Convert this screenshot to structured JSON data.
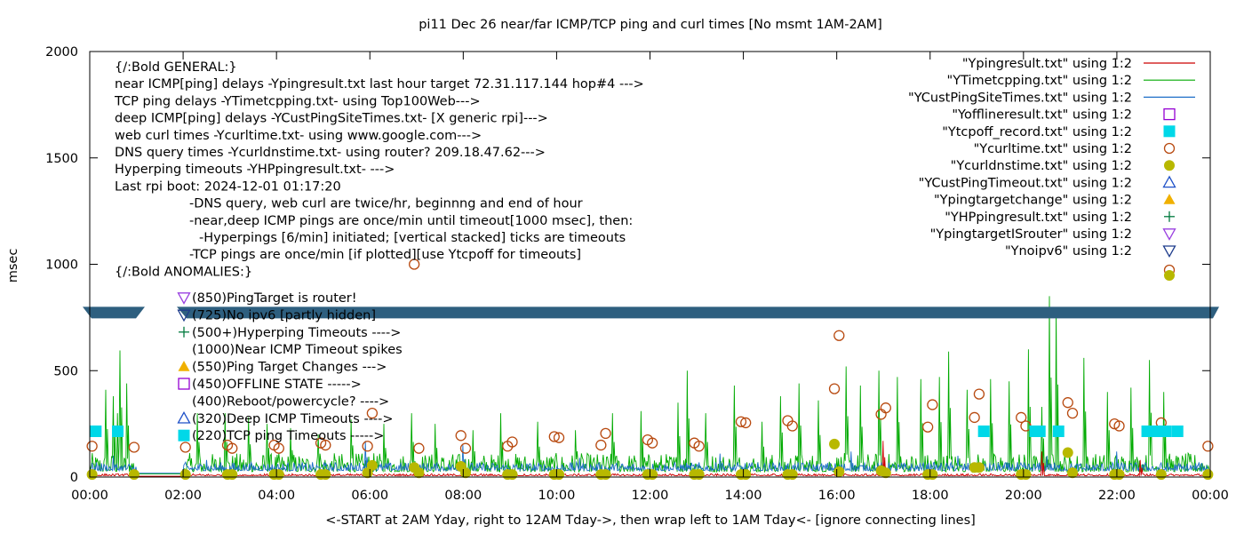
{
  "chart_data": {
    "type": "scatter",
    "title": "pi11 Dec 26  near/far ICMP/TCP ping and curl times [No msmt 1AM-2AM]",
    "xlabel": "<-START at 2AM Yday, right to 12AM Tday->, then wrap left to 1AM Tday<- [ignore connecting lines]",
    "ylabel": "msec",
    "xlim": [
      0,
      24
    ],
    "ylim": [
      0,
      2000
    ],
    "x_ticks": [
      "00:00",
      "02:00",
      "04:00",
      "06:00",
      "08:00",
      "10:00",
      "12:00",
      "14:00",
      "16:00",
      "18:00",
      "20:00",
      "22:00",
      "00:00"
    ],
    "y_ticks": [
      0,
      500,
      1000,
      1500,
      2000
    ],
    "legend_position": "top-right",
    "legend": [
      {
        "label": "\"Ypingresult.txt\" using 1:2",
        "marker": "line",
        "color": "#cc0000"
      },
      {
        "label": "\"YTimetcpping.txt\" using 1:2",
        "marker": "line",
        "color": "#00aa00"
      },
      {
        "label": "\"YCustPingSiteTimes.txt\" using 1:2",
        "marker": "line",
        "color": "#1e6fc8"
      },
      {
        "label": "\"Yofflineresult.txt\" using 1:2",
        "marker": "open-square",
        "color": "#9400d3"
      },
      {
        "label": "\"Ytcpoff_record.txt\" using 1:2",
        "marker": "filled-square",
        "color": "#00d8e8"
      },
      {
        "label": "\"Ycurltime.txt\" using 1:2",
        "marker": "open-circle",
        "color": "#b84a10"
      },
      {
        "label": "\"Ycurldnstime.txt\" using 1:2",
        "marker": "filled-circle",
        "color": "#b8b800"
      },
      {
        "label": "\"YCustPingTimeout.txt\" using 1:2",
        "marker": "open-triangle",
        "color": "#1e50c8"
      },
      {
        "label": "\"Ypingtargetchange\" using 1:2",
        "marker": "filled-triangle",
        "color": "#f0b000"
      },
      {
        "label": "\"YHPpingresult.txt\" using 1:2",
        "marker": "plus",
        "color": "#007a3d"
      },
      {
        "label": "\"YpingtargetISrouter\" using 1:2",
        "marker": "open-down-triangle",
        "color": "#9a40e0"
      },
      {
        "label": "\"Ynoipv6\" using 1:2",
        "marker": "open-down-triangle",
        "color": "#1e3c8c"
      }
    ],
    "info_text": [
      "{/:Bold GENERAL:}",
      "near ICMP[ping] delays -Ypingresult.txt last hour target 72.31.117.144 hop#4 --->",
      "TCP ping delays -YTimetcpping.txt- using Top100Web--->",
      "deep ICMP[ping] delays -YCustPingSiteTimes.txt- [X generic rpi]--->",
      "web curl times -Ycurltime.txt- using www.google.com--->",
      "DNS query times -Ycurldnstime.txt- using router? 209.18.47.62--->",
      "Hyperping timeouts -YHPpingresult.txt- --->",
      "Last rpi boot: 2024-12-01 01:17:20",
      "-DNS query, web curl are twice/hr, beginnng and end of hour",
      "-near,deep ICMP pings are once/min until timeout[1000 msec], then:",
      "-Hyperpings [6/min] initiated; [vertical stacked] ticks are timeouts",
      "-TCP pings are once/min [if plotted][use Ytcpoff for timeouts]",
      "{/:Bold ANOMALIES:}"
    ],
    "anomaly_labels": [
      {
        "text": "(850)PingTarget is router!",
        "marker": "open-down-triangle",
        "color": "#9a40e0"
      },
      {
        "text": "(725)No ipv6 [partly hidden]",
        "marker": "open-down-triangle",
        "color": "#1e3c8c"
      },
      {
        "text": "(500+)Hyperping Timeouts ---->",
        "marker": "plus",
        "color": "#007a3d"
      },
      {
        "text": "(1000)Near ICMP Timeout spikes",
        "marker": "none",
        "color": "#000000"
      },
      {
        "text": "(550)Ping Target Changes --->",
        "marker": "filled-triangle",
        "color": "#f0b000"
      },
      {
        "text": "(450)OFFLINE STATE ----->",
        "marker": "open-square",
        "color": "#9400d3"
      },
      {
        "text": "(400)Reboot/powercycle? ---->",
        "marker": "none",
        "color": "#000000"
      },
      {
        "text": "(320)Deep ICMP Timeouts ---->",
        "marker": "open-triangle",
        "color": "#1e50c8"
      },
      {
        "text": "(220)TCP ping Timeouts ----->",
        "marker": "filled-square",
        "color": "#00d8e8"
      }
    ],
    "band": {
      "y": 775,
      "color": "#2e5f7f"
    },
    "series": [
      {
        "name": "\"Ycurltime.txt\" using 1:2",
        "marker": "open-circle",
        "color": "#b84a10",
        "points": [
          [
            0.05,
            145
          ],
          [
            0.95,
            140
          ],
          [
            2.05,
            140
          ],
          [
            2.95,
            150
          ],
          [
            3.05,
            135
          ],
          [
            3.95,
            150
          ],
          [
            4.05,
            135
          ],
          [
            4.95,
            160
          ],
          [
            5.05,
            150
          ],
          [
            5.95,
            145
          ],
          [
            6.05,
            300
          ],
          [
            6.95,
            1000
          ],
          [
            7.05,
            135
          ],
          [
            7.95,
            195
          ],
          [
            8.05,
            135
          ],
          [
            8.95,
            145
          ],
          [
            9.05,
            165
          ],
          [
            9.95,
            190
          ],
          [
            10.05,
            185
          ],
          [
            10.95,
            150
          ],
          [
            11.05,
            205
          ],
          [
            11.95,
            175
          ],
          [
            12.05,
            160
          ],
          [
            12.95,
            160
          ],
          [
            13.05,
            145
          ],
          [
            13.95,
            260
          ],
          [
            14.05,
            255
          ],
          [
            14.95,
            265
          ],
          [
            15.05,
            240
          ],
          [
            15.95,
            415
          ],
          [
            16.05,
            665
          ],
          [
            16.95,
            295
          ],
          [
            17.05,
            325
          ],
          [
            17.95,
            235
          ],
          [
            18.05,
            340
          ],
          [
            18.95,
            280
          ],
          [
            19.05,
            390
          ],
          [
            19.95,
            280
          ],
          [
            20.05,
            240
          ],
          [
            20.95,
            350
          ],
          [
            21.05,
            300
          ],
          [
            21.95,
            250
          ],
          [
            22.05,
            240
          ],
          [
            22.95,
            255
          ],
          [
            23.95,
            145
          ]
        ]
      },
      {
        "name": "\"Ycurldnstime.txt\" using 1:2",
        "marker": "filled-circle",
        "color": "#b8b800",
        "points": [
          [
            0.05,
            12
          ],
          [
            0.95,
            12
          ],
          [
            2.05,
            12
          ],
          [
            2.95,
            12
          ],
          [
            3.05,
            12
          ],
          [
            3.95,
            12
          ],
          [
            4.05,
            12
          ],
          [
            4.95,
            12
          ],
          [
            5.05,
            12
          ],
          [
            5.95,
            20
          ],
          [
            6.05,
            55
          ],
          [
            6.95,
            45
          ],
          [
            7.05,
            20
          ],
          [
            7.95,
            50
          ],
          [
            8.05,
            20
          ],
          [
            8.95,
            12
          ],
          [
            9.05,
            12
          ],
          [
            9.95,
            12
          ],
          [
            10.05,
            12
          ],
          [
            10.95,
            12
          ],
          [
            11.05,
            12
          ],
          [
            11.95,
            12
          ],
          [
            12.05,
            12
          ],
          [
            12.95,
            12
          ],
          [
            13.05,
            12
          ],
          [
            13.95,
            12
          ],
          [
            14.05,
            12
          ],
          [
            14.95,
            12
          ],
          [
            15.05,
            12
          ],
          [
            15.95,
            155
          ],
          [
            16.05,
            25
          ],
          [
            16.95,
            30
          ],
          [
            17.05,
            20
          ],
          [
            17.95,
            12
          ],
          [
            18.05,
            12
          ],
          [
            18.95,
            45
          ],
          [
            19.05,
            45
          ],
          [
            19.95,
            12
          ],
          [
            20.05,
            12
          ],
          [
            20.95,
            115
          ],
          [
            21.05,
            20
          ],
          [
            21.95,
            12
          ],
          [
            22.05,
            12
          ],
          [
            22.95,
            12
          ],
          [
            23.95,
            12
          ]
        ]
      },
      {
        "name": "\"Ytcpoff_record.txt\" using 1:2",
        "marker": "filled-square",
        "color": "#00d8e8",
        "points": [
          [
            0.13,
            215
          ],
          [
            0.6,
            215
          ],
          [
            19.15,
            215
          ],
          [
            20.25,
            215
          ],
          [
            20.35,
            215
          ],
          [
            20.75,
            215
          ],
          [
            22.65,
            215
          ],
          [
            22.78,
            215
          ],
          [
            22.88,
            215
          ],
          [
            23.05,
            215
          ],
          [
            23.3,
            215
          ]
        ]
      }
    ],
    "line_series": [
      {
        "name": "\"YTimetcpping.txt\" using 1:2",
        "color": "#00aa00",
        "baseline": 25,
        "noise": 55,
        "spikes": [
          [
            0.35,
            410
          ],
          [
            0.5,
            380
          ],
          [
            0.6,
            300
          ],
          [
            0.65,
            595
          ],
          [
            0.8,
            440
          ],
          [
            2.3,
            300
          ],
          [
            2.9,
            300
          ],
          [
            3.4,
            280
          ],
          [
            3.8,
            250
          ],
          [
            4.3,
            230
          ],
          [
            4.9,
            200
          ],
          [
            5.6,
            270
          ],
          [
            6.3,
            250
          ],
          [
            6.9,
            300
          ],
          [
            7.4,
            250
          ],
          [
            8.2,
            220
          ],
          [
            8.8,
            300
          ],
          [
            9.6,
            260
          ],
          [
            10.4,
            220
          ],
          [
            11.2,
            300
          ],
          [
            11.8,
            310
          ],
          [
            12.6,
            350
          ],
          [
            12.8,
            500
          ],
          [
            13.2,
            300
          ],
          [
            13.8,
            430
          ],
          [
            14.4,
            260
          ],
          [
            14.8,
            380
          ],
          [
            15.2,
            440
          ],
          [
            15.6,
            360
          ],
          [
            16.2,
            520
          ],
          [
            16.5,
            430
          ],
          [
            16.9,
            500
          ],
          [
            17.3,
            470
          ],
          [
            17.8,
            460
          ],
          [
            18.2,
            470
          ],
          [
            18.4,
            590
          ],
          [
            18.8,
            410
          ],
          [
            19.3,
            460
          ],
          [
            19.7,
            450
          ],
          [
            20.1,
            600
          ],
          [
            20.4,
            330
          ],
          [
            20.55,
            850
          ],
          [
            20.7,
            790
          ],
          [
            21.3,
            560
          ],
          [
            21.8,
            400
          ],
          [
            22.3,
            420
          ],
          [
            22.7,
            550
          ],
          [
            23.0,
            400
          ]
        ]
      },
      {
        "name": "\"YCustPingSiteTimes.txt\" using 1:2",
        "color": "#1e6fc8",
        "baseline": 30,
        "noise": 25,
        "spikes": [
          [
            0.5,
            100
          ],
          [
            2.5,
            80
          ],
          [
            5.9,
            170
          ],
          [
            8.0,
            150
          ],
          [
            10.5,
            90
          ],
          [
            13.5,
            110
          ],
          [
            16.3,
            120
          ],
          [
            18.6,
            100
          ],
          [
            20.5,
            100
          ],
          [
            22.0,
            120
          ]
        ]
      },
      {
        "name": "\"Ypingresult.txt\" using 1:2",
        "color": "#cc0000",
        "baseline": 6,
        "noise": 6,
        "spikes": [
          [
            17.0,
            170
          ],
          [
            20.4,
            120
          ],
          [
            22.5,
            80
          ]
        ]
      }
    ]
  }
}
